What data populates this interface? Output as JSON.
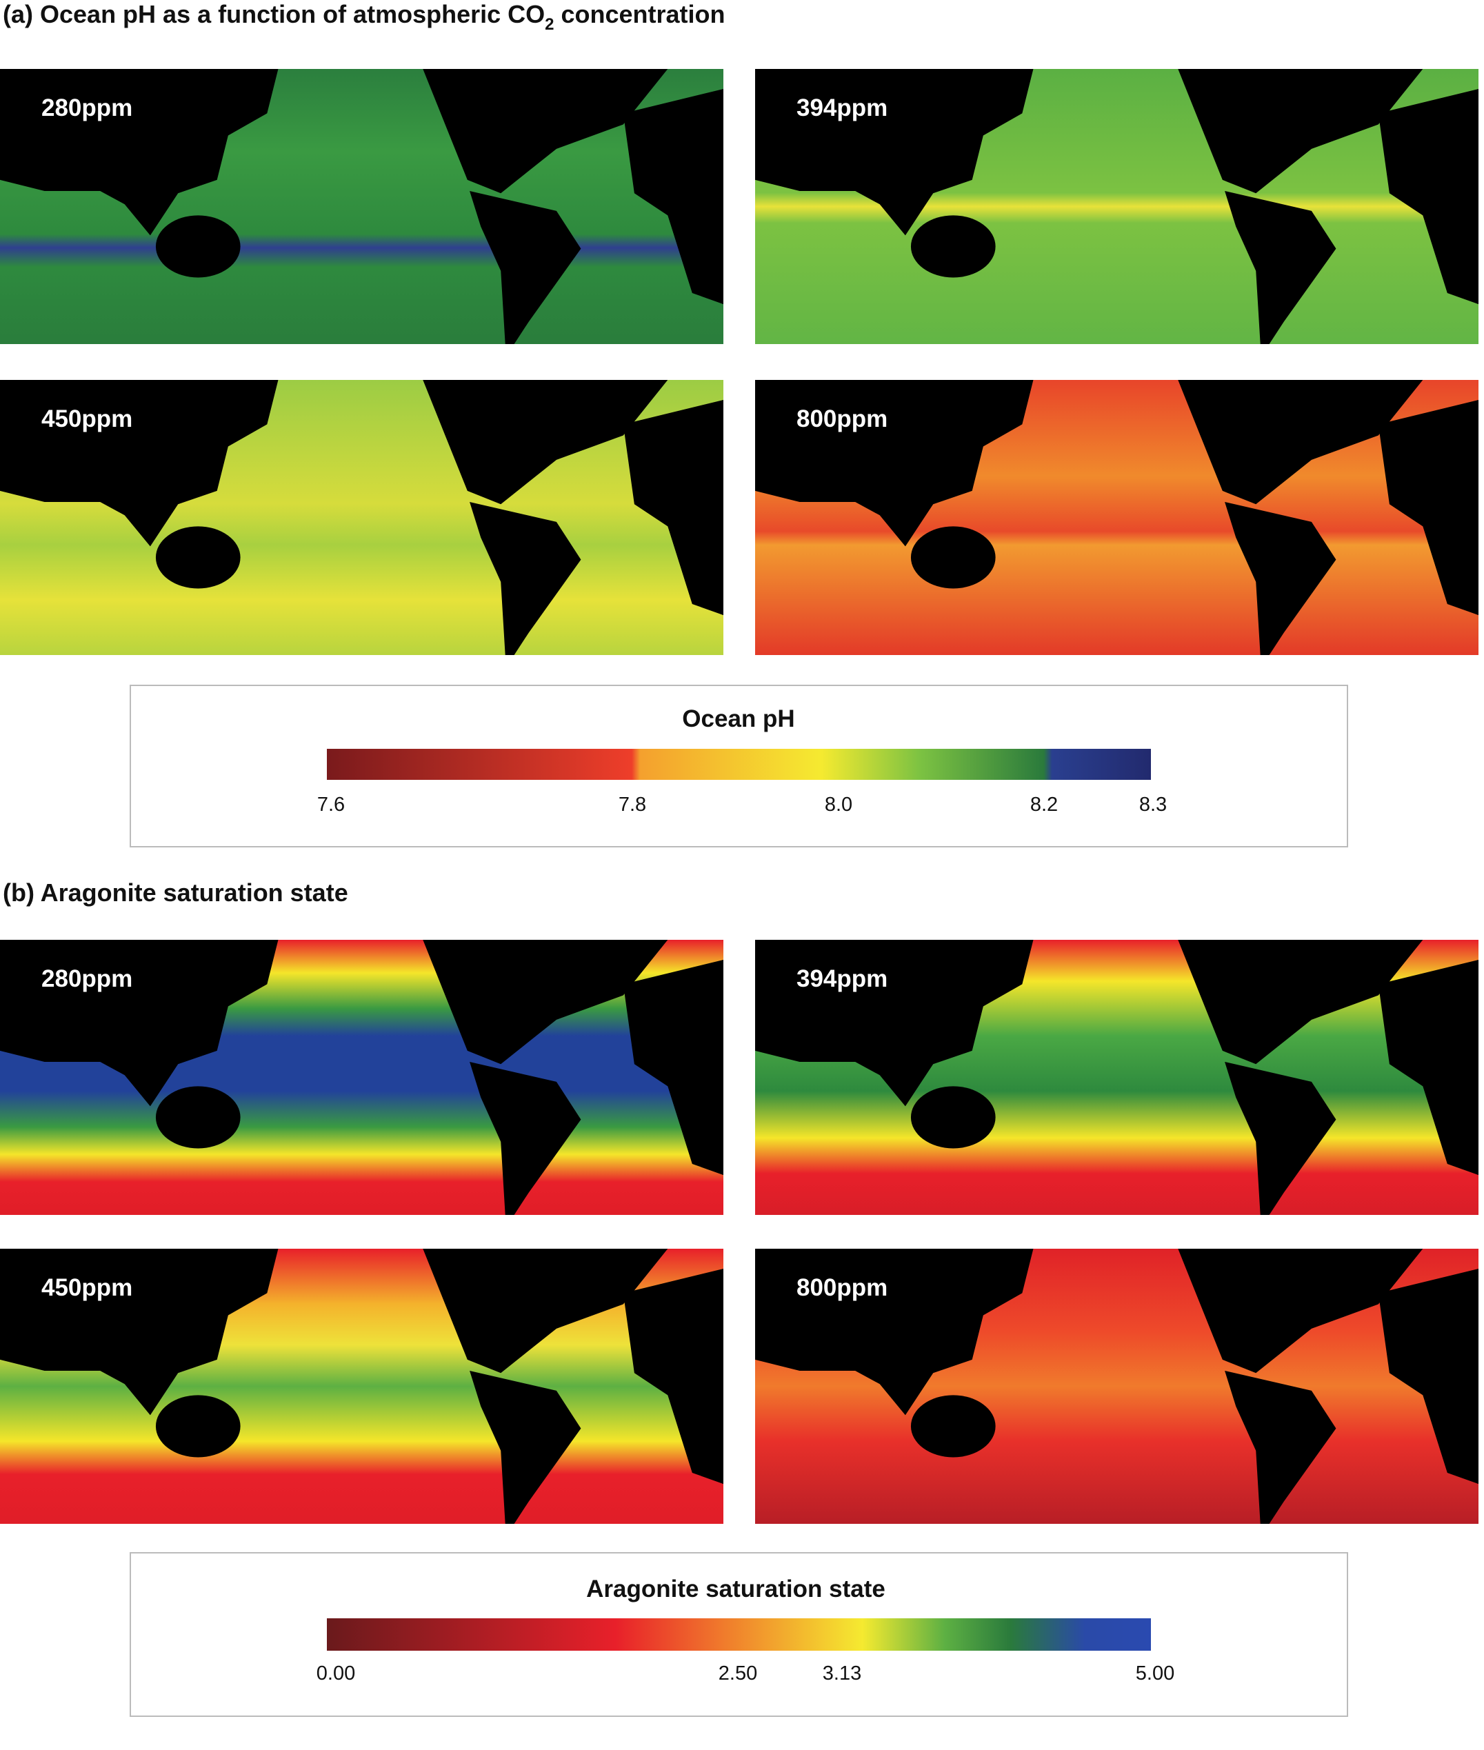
{
  "panel_a": {
    "title": "(a) Ocean pH as a function of atmospheric CO",
    "title_sub": "2",
    "title_tail": "concentration",
    "maps": [
      "280ppm",
      "394ppm",
      "450ppm",
      "800ppm"
    ],
    "legend": {
      "title": "Ocean pH",
      "ticks": [
        "7.6",
        "7.8",
        "8.0",
        "8.2",
        "8.3"
      ]
    }
  },
  "panel_b": {
    "title": "(b) Aragonite saturation state",
    "maps": [
      "280ppm",
      "394ppm",
      "450ppm",
      "800ppm"
    ],
    "legend": {
      "title": "Aragonite saturation state",
      "ticks": [
        "0.00",
        "2.50",
        "3.13",
        "5.00"
      ]
    }
  }
}
